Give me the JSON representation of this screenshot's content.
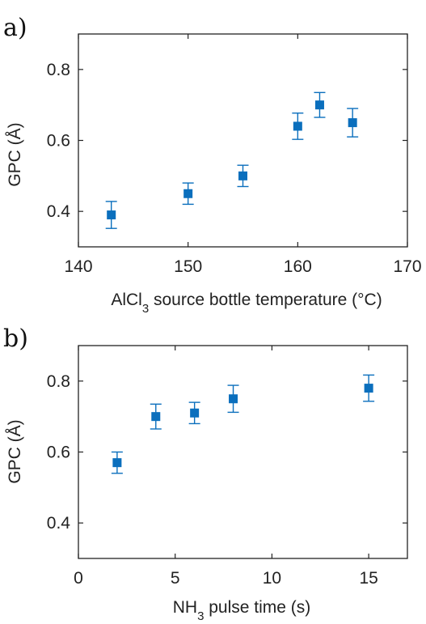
{
  "chart_data": [
    {
      "type": "scatter",
      "panel_label": "a)",
      "xlabel_parts": [
        "AlCl",
        "3",
        " source bottle temperature (°C)"
      ],
      "ylabel": "GPC (Å)",
      "xlim": [
        140,
        170
      ],
      "ylim": [
        0.3,
        0.9
      ],
      "xticks": [
        "140",
        "150",
        "160",
        "170"
      ],
      "xtick_values": [
        140,
        150,
        160,
        170
      ],
      "yticks": [
        "0.4",
        "0.6",
        "0.8"
      ],
      "ytick_values": [
        0.4,
        0.6,
        0.8
      ],
      "grid": false,
      "marker": "square",
      "color": "#0b6fbd",
      "points": [
        {
          "x": 143,
          "y": 0.39,
          "err": 0.038
        },
        {
          "x": 150,
          "y": 0.45,
          "err": 0.03
        },
        {
          "x": 155,
          "y": 0.5,
          "err": 0.03
        },
        {
          "x": 160,
          "y": 0.64,
          "err": 0.037
        },
        {
          "x": 162,
          "y": 0.7,
          "err": 0.035
        },
        {
          "x": 165,
          "y": 0.65,
          "err": 0.04
        }
      ]
    },
    {
      "type": "scatter",
      "panel_label": "b)",
      "xlabel_parts": [
        "NH",
        "3",
        " pulse time (s)"
      ],
      "ylabel": "GPC (Å)",
      "xlim": [
        0,
        17
      ],
      "ylim": [
        0.3,
        0.9
      ],
      "xticks": [
        "0",
        "5",
        "10",
        "15"
      ],
      "xtick_values": [
        0,
        5,
        10,
        15
      ],
      "yticks": [
        "0.4",
        "0.6",
        "0.8"
      ],
      "ytick_values": [
        0.4,
        0.6,
        0.8
      ],
      "grid": false,
      "marker": "square",
      "color": "#0b6fbd",
      "points": [
        {
          "x": 2,
          "y": 0.57,
          "err": 0.03
        },
        {
          "x": 4,
          "y": 0.7,
          "err": 0.035
        },
        {
          "x": 6,
          "y": 0.71,
          "err": 0.03
        },
        {
          "x": 8,
          "y": 0.75,
          "err": 0.038
        },
        {
          "x": 15,
          "y": 0.78,
          "err": 0.037
        }
      ]
    }
  ]
}
